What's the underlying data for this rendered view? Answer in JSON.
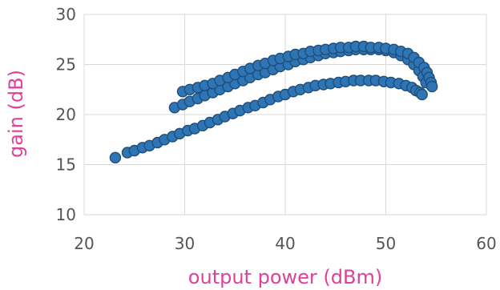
{
  "chart_data": {
    "type": "scatter",
    "xlabel": "output power (dBm)",
    "ylabel": "gain (dB)",
    "xlim": [
      20,
      60
    ],
    "ylim": [
      10,
      30
    ],
    "x_ticks": [
      "20",
      "30",
      "40",
      "50",
      "60"
    ],
    "y_ticks": [
      "10",
      "15",
      "20",
      "25",
      "30"
    ],
    "grid": true,
    "colors": {
      "marker_fill": "#2e75b6",
      "marker_stroke": "#1f4e79",
      "axis_title": "#e0409a",
      "grid": "#d9d9d9"
    },
    "series": [
      {
        "x": [
          23.1,
          24.3,
          25.0,
          25.8,
          26.5,
          27.3,
          28.0,
          28.8,
          29.5,
          30.3,
          31.0,
          31.8,
          32.5,
          33.3,
          34.0,
          34.8,
          35.5,
          36.3,
          37.0,
          37.8,
          38.5,
          39.3,
          40.0,
          40.8,
          41.5,
          42.3,
          43.0,
          43.8,
          44.5,
          45.3,
          46.0,
          46.8,
          47.5,
          48.3,
          49.0,
          49.8,
          50.5,
          51.3,
          52.0,
          52.6,
          53.0,
          53.4,
          53.6
        ],
        "y": [
          15.7,
          16.2,
          16.4,
          16.7,
          16.9,
          17.2,
          17.5,
          17.8,
          18.1,
          18.4,
          18.6,
          18.9,
          19.2,
          19.5,
          19.8,
          20.1,
          20.4,
          20.7,
          20.9,
          21.2,
          21.5,
          21.8,
          22.0,
          22.3,
          22.5,
          22.7,
          22.9,
          23.0,
          23.1,
          23.2,
          23.3,
          23.4,
          23.4,
          23.4,
          23.4,
          23.3,
          23.2,
          23.1,
          22.9,
          22.7,
          22.4,
          22.2,
          22.0
        ]
      },
      {
        "x": [
          29.0,
          29.8,
          30.5,
          31.3,
          32.0,
          32.8,
          33.5,
          34.3,
          35.0,
          35.8,
          36.5,
          37.3,
          38.0,
          38.8,
          39.5,
          40.3,
          41.0,
          41.8,
          42.5,
          43.3,
          44.0,
          44.8,
          45.5,
          46.3,
          47.0,
          47.8,
          48.5,
          49.3,
          50.0,
          50.8,
          51.5,
          52.2,
          52.8,
          53.3,
          53.7,
          54.0
        ],
        "y": [
          20.7,
          21.0,
          21.3,
          21.6,
          21.9,
          22.2,
          22.5,
          22.8,
          23.1,
          23.4,
          23.7,
          24.0,
          24.2,
          24.5,
          24.8,
          25.0,
          25.3,
          25.5,
          25.7,
          25.9,
          26.1,
          26.2,
          26.3,
          26.4,
          26.5,
          26.5,
          26.5,
          26.5,
          26.4,
          26.2,
          25.9,
          25.5,
          25.0,
          24.4,
          23.8,
          23.2
        ]
      },
      {
        "x": [
          29.8,
          30.5,
          31.3,
          32.0,
          32.8,
          33.5,
          34.3,
          35.0,
          35.8,
          36.5,
          37.3,
          38.0,
          38.8,
          39.5,
          40.3,
          41.0,
          41.8,
          42.5,
          43.3,
          44.0,
          44.8,
          45.5,
          46.3,
          47.0,
          47.8,
          48.5,
          49.3,
          50.0,
          50.8,
          51.5,
          52.2,
          52.8,
          53.3,
          53.8,
          54.1,
          54.3,
          54.5,
          54.6
        ],
        "y": [
          22.3,
          22.5,
          22.7,
          22.9,
          23.1,
          23.4,
          23.7,
          24.0,
          24.3,
          24.6,
          24.9,
          25.1,
          25.4,
          25.6,
          25.8,
          26.0,
          26.1,
          26.3,
          26.4,
          26.5,
          26.6,
          26.7,
          26.7,
          26.8,
          26.8,
          26.7,
          26.7,
          26.6,
          26.5,
          26.3,
          26.1,
          25.7,
          25.2,
          24.7,
          24.2,
          23.7,
          23.2,
          22.8
        ]
      }
    ]
  }
}
